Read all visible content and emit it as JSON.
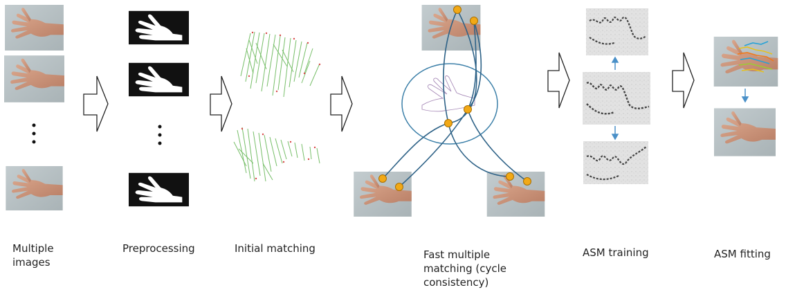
{
  "captions": {
    "multiple_images": "Multiple\nimages",
    "preprocessing": "Preprocessing",
    "initial_matching": "Initial matching",
    "fast_matching": "Fast multiple\nmatching (cycle\nconsistency)",
    "asm_training": "ASM training",
    "asm_fitting": "ASM fitting"
  },
  "colors": {
    "photo_bg": "#b9c3c6",
    "skin": "#cf9a80",
    "mask_bg": "#111111",
    "line_green": "#5fb34e",
    "curve_blue": "#2e6287",
    "dot_orange": "#f2a916",
    "arrow_blue": "#4a90c8",
    "sketch_gray": "#444444"
  }
}
